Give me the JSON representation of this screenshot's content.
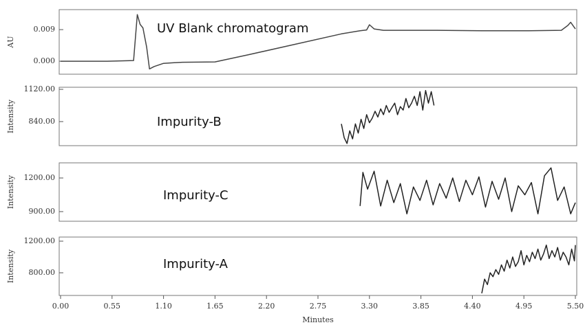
{
  "chart_data": [
    {
      "type": "line",
      "annotation": "UV Blank chromatogram",
      "ylabel": "AU",
      "color": "#444444",
      "x": [
        0,
        0.5,
        0.78,
        0.82,
        0.85,
        0.88,
        0.92,
        0.95,
        1.0,
        1.1,
        1.3,
        1.65,
        2.0,
        2.5,
        3.0,
        3.2,
        3.27,
        3.3,
        3.35,
        3.45,
        4.0,
        4.5,
        5.0,
        5.35,
        5.42,
        5.45,
        5.5
      ],
      "values": [
        0,
        0,
        0.0002,
        0.0133,
        0.0105,
        0.0095,
        0.004,
        -0.0022,
        -0.0015,
        -0.0006,
        -0.0003,
        -0.0002,
        0.0018,
        0.0048,
        0.0078,
        0.0087,
        0.0089,
        0.0104,
        0.0092,
        0.0088,
        0.0088,
        0.0087,
        0.0087,
        0.0088,
        0.0102,
        0.0111,
        0.0092
      ],
      "xlim": [
        0,
        5.5
      ],
      "ylim": [
        -0.0037,
        0.0147
      ],
      "yticks": [
        0.009,
        {
          "value": 0,
          "label": "0.000"
        }
      ]
    },
    {
      "type": "line",
      "annotation": "Impurity-B",
      "ylabel": "Intensity",
      "color": "#222222",
      "x": [
        3.0,
        3.03,
        3.06,
        3.09,
        3.12,
        3.15,
        3.18,
        3.21,
        3.24,
        3.27,
        3.3,
        3.33,
        3.36,
        3.39,
        3.42,
        3.45,
        3.48,
        3.51,
        3.54,
        3.57,
        3.6,
        3.63,
        3.66,
        3.69,
        3.72,
        3.75,
        3.78,
        3.81,
        3.84,
        3.87,
        3.9,
        3.93,
        3.96,
        3.99
      ],
      "values": [
        820,
        700,
        650,
        760,
        690,
        820,
        740,
        860,
        780,
        900,
        830,
        870,
        930,
        880,
        950,
        900,
        980,
        920,
        960,
        1000,
        900,
        970,
        940,
        1040,
        960,
        1000,
        1060,
        980,
        1100,
        940,
        1110,
        1000,
        1100,
        980
      ],
      "xlim": [
        0,
        5.5
      ],
      "ylim": [
        631,
        1138
      ],
      "yticks": [
        {
          "value": 1120,
          "label": "1120.00"
        },
        {
          "value": 840,
          "label": "840.00"
        }
      ]
    },
    {
      "type": "line",
      "annotation": "Impurity-C",
      "ylabel": "Intensity",
      "color": "#222222",
      "x": [
        3.2,
        3.23,
        3.28,
        3.35,
        3.42,
        3.49,
        3.56,
        3.63,
        3.7,
        3.77,
        3.84,
        3.91,
        3.98,
        4.05,
        4.12,
        4.19,
        4.26,
        4.33,
        4.4,
        4.47,
        4.54,
        4.61,
        4.68,
        4.75,
        4.82,
        4.89,
        4.96,
        5.03,
        5.1,
        5.17,
        5.24,
        5.31,
        5.38,
        5.45,
        5.5
      ],
      "values": [
        950,
        1250,
        1100,
        1260,
        950,
        1180,
        980,
        1150,
        880,
        1120,
        1000,
        1180,
        960,
        1150,
        1020,
        1200,
        990,
        1180,
        1050,
        1210,
        940,
        1170,
        1010,
        1200,
        900,
        1130,
        1050,
        1160,
        880,
        1220,
        1290,
        1000,
        1120,
        880,
        980
      ],
      "xlim": [
        0,
        5.5
      ],
      "ylim": [
        814,
        1335
      ],
      "yticks": [
        {
          "value": 1200,
          "label": "1200.00"
        },
        {
          "value": 900,
          "label": "900.00"
        }
      ]
    },
    {
      "type": "line",
      "annotation": "Impurity-A",
      "ylabel": "Intensity",
      "xlabel": "Minutes",
      "color": "#222222",
      "x": [
        4.5,
        4.53,
        4.56,
        4.59,
        4.62,
        4.65,
        4.68,
        4.71,
        4.74,
        4.77,
        4.8,
        4.83,
        4.86,
        4.89,
        4.92,
        4.95,
        4.98,
        5.01,
        5.04,
        5.07,
        5.1,
        5.13,
        5.16,
        5.19,
        5.22,
        5.25,
        5.28,
        5.31,
        5.34,
        5.37,
        5.4,
        5.43,
        5.46,
        5.49,
        5.5
      ],
      "values": [
        540,
        720,
        650,
        800,
        750,
        840,
        780,
        900,
        820,
        960,
        860,
        1000,
        880,
        940,
        1080,
        900,
        1020,
        940,
        1060,
        980,
        1100,
        960,
        1040,
        1150,
        980,
        1080,
        1000,
        1120,
        960,
        1060,
        1000,
        900,
        1100,
        950,
        1150
      ],
      "xlim": [
        0,
        5.5
      ],
      "ylim": [
        513,
        1252
      ],
      "yticks": [
        {
          "value": 1200,
          "label": "1200.00"
        },
        {
          "value": 800,
          "label": "800.00"
        }
      ],
      "xticks": [
        {
          "value": 0,
          "label": "0.00"
        },
        0.55,
        {
          "value": 1.1,
          "label": "1.10"
        },
        1.65,
        {
          "value": 2.2,
          "label": "2.20"
        },
        2.75,
        {
          "value": 3.3,
          "label": "3.30"
        },
        3.85,
        {
          "value": 4.4,
          "label": "4.40"
        },
        4.95,
        {
          "value": 5.5,
          "label": "5.50"
        }
      ]
    }
  ]
}
